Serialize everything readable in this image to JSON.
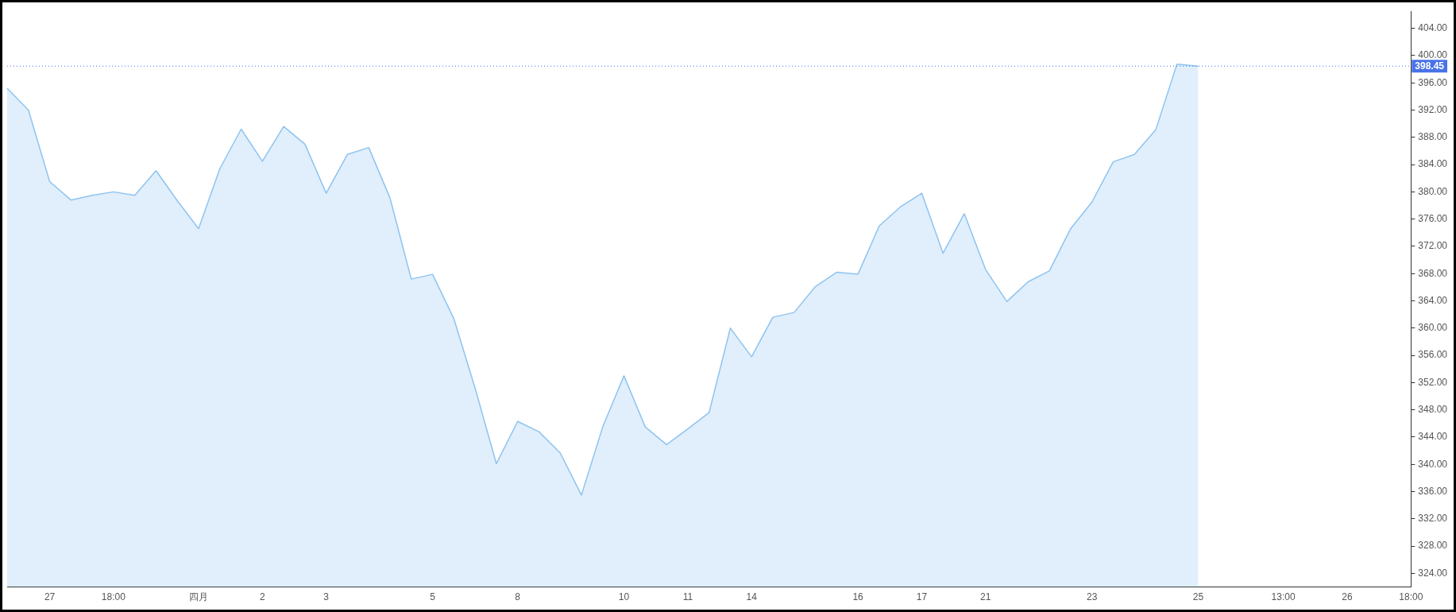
{
  "chart_data": {
    "type": "area",
    "categories": [
      null,
      null,
      "27",
      null,
      null,
      "18:00",
      null,
      null,
      null,
      "四月",
      null,
      null,
      "2",
      null,
      null,
      "3",
      null,
      null,
      null,
      null,
      "5",
      null,
      null,
      null,
      "8",
      null,
      null,
      null,
      null,
      "10",
      null,
      null,
      "11",
      null,
      null,
      "14",
      null,
      null,
      null,
      null,
      "16",
      null,
      null,
      "17",
      null,
      null,
      "21",
      null,
      null,
      null,
      null,
      "23",
      null,
      null,
      null,
      null,
      "25",
      null,
      null,
      null,
      "13:00",
      null,
      null,
      "26",
      null,
      null,
      "18:00"
    ],
    "series": [
      {
        "color": "#8ec3f0",
        "values": [
          395.2,
          392.0,
          381.5,
          378.8,
          379.5,
          380.0,
          379.5,
          383.1,
          378.7,
          374.6,
          383.4,
          389.2,
          384.5,
          389.6,
          387.0,
          379.8,
          385.5,
          386.5,
          379.1,
          367.2,
          367.9,
          361.4,
          351.2,
          340.1,
          346.3,
          344.8,
          341.7,
          335.5,
          345.5,
          353.0,
          345.5,
          342.9,
          345.2,
          347.6,
          360.0,
          355.8,
          361.6,
          362.3,
          366.1,
          368.2,
          367.9,
          375.0,
          377.8,
          379.8,
          371.0,
          376.8,
          368.6,
          363.9,
          366.8,
          368.4,
          374.6,
          378.5,
          384.4,
          385.5,
          389.1,
          398.75,
          398.45,
          null,
          null,
          null,
          null,
          null,
          null,
          null,
          null,
          null,
          null
        ]
      }
    ],
    "ylim": [
      322,
      406.5
    ],
    "yticks": [
      {
        "value": 324,
        "label": "324.00"
      },
      {
        "value": 328,
        "label": "328.00"
      },
      {
        "value": 332,
        "label": "332.00"
      },
      {
        "value": 336,
        "label": "336.00"
      },
      {
        "value": 340,
        "label": "340.00"
      },
      {
        "value": 344,
        "label": "344.00"
      },
      {
        "value": 348,
        "label": "348.00"
      },
      {
        "value": 352,
        "label": "352.00"
      },
      {
        "value": 356,
        "label": "356.00"
      },
      {
        "value": 360,
        "label": "360.00"
      },
      {
        "value": 364,
        "label": "364.00"
      },
      {
        "value": 368,
        "label": "368.00"
      },
      {
        "value": 372,
        "label": "372.00"
      },
      {
        "value": 376,
        "label": "376.00"
      },
      {
        "value": 380,
        "label": "380.00"
      },
      {
        "value": 384,
        "label": "384.00"
      },
      {
        "value": 388,
        "label": "388.00"
      },
      {
        "value": 392,
        "label": "392.00"
      },
      {
        "value": 396,
        "label": "396.00"
      },
      {
        "value": 400,
        "label": "400.00"
      },
      {
        "value": 404,
        "label": "404.00"
      }
    ],
    "ref_lines": [
      {
        "axis": "y",
        "value": 398.45,
        "label": "398.45",
        "color": "#4a72e8",
        "line_style": "dotted"
      }
    ],
    "grid": false,
    "legend": false,
    "marker": "none"
  }
}
